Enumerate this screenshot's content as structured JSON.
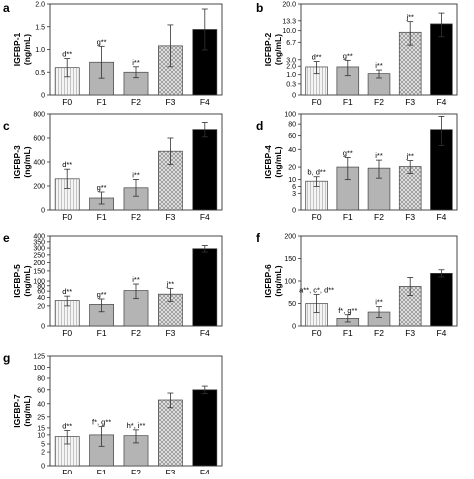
{
  "figure": {
    "bar_colors": {
      "F0": "#f2f2f2",
      "F1": "#b4b4b4",
      "F2": "#b4b4b4",
      "F3": "#d6d6d6",
      "F4": "#000000"
    },
    "bar_patterns": {
      "F0": "vertical-lines",
      "F1": "solid",
      "F2": "solid",
      "F3": "crosshatch",
      "F4": "solid"
    }
  },
  "chart_data": [
    {
      "type": "bar",
      "panel_label": "a",
      "ylabel_line1": "IGFBP-1",
      "ylabel_line2": "(ng/mL)",
      "categories": [
        "F0",
        "F1",
        "F2",
        "F3",
        "F4"
      ],
      "values": [
        0.6,
        0.72,
        0.5,
        1.08,
        1.44
      ],
      "errors": [
        0.2,
        0.35,
        0.12,
        0.46,
        0.45
      ],
      "yticks": [
        "0",
        "0.5",
        "1.0",
        "1.5",
        "2.0"
      ],
      "ylim": [
        0,
        2.0
      ],
      "scale": "linear",
      "annotations": [
        "d**",
        "g**",
        "i**",
        "",
        ""
      ]
    },
    {
      "type": "bar",
      "panel_label": "b",
      "ylabel_line1": "IGFBP-2",
      "ylabel_line2": "(ng/mL)",
      "categories": [
        "F0",
        "F1",
        "F2",
        "F3",
        "F4"
      ],
      "values": [
        1.9,
        1.9,
        1.1,
        9.5,
        12.2
      ],
      "errors": [
        0.8,
        1.0,
        0.4,
        3.5,
        4.0
      ],
      "yticks": [
        "0",
        "0.3",
        "1.0",
        "2.0",
        "3.0",
        "6.7",
        "10.0",
        "13.3",
        "20.0"
      ],
      "ylim": [
        0,
        20
      ],
      "scale": "sqrt",
      "annotations": [
        "d**",
        "g**",
        "i**",
        "j**",
        ""
      ]
    },
    {
      "type": "bar",
      "panel_label": "c",
      "ylabel_line1": "IGFBP-3",
      "ylabel_line2": "(ng/mL)",
      "categories": [
        "F0",
        "F1",
        "F2",
        "F3",
        "F4"
      ],
      "values": [
        260,
        100,
        185,
        490,
        670
      ],
      "errors": [
        80,
        50,
        70,
        110,
        60
      ],
      "yticks": [
        "0",
        "200",
        "400",
        "600",
        "800"
      ],
      "ylim": [
        0,
        800
      ],
      "scale": "linear",
      "annotations": [
        "d**",
        "g**",
        "i**",
        "",
        ""
      ]
    },
    {
      "type": "bar",
      "panel_label": "d",
      "ylabel_line1": "IGFBP-4",
      "ylabel_line2": "(ng/mL)",
      "categories": [
        "F0",
        "F1",
        "F2",
        "F3",
        "F4"
      ],
      "values": [
        9,
        20,
        19,
        20.5,
        70
      ],
      "errors": [
        3,
        10,
        8,
        6,
        25
      ],
      "yticks": [
        "0",
        "3",
        "6",
        "10",
        "20",
        "40",
        "60",
        "80",
        "100"
      ],
      "ylim": [
        0,
        100
      ],
      "scale": "sqrt",
      "annotations": [
        "b, d**",
        "g**",
        "i**",
        "j**",
        ""
      ]
    },
    {
      "type": "bar",
      "panel_label": "e",
      "ylabel_line1": "IGFBP-5",
      "ylabel_line2": "(ng/mL)",
      "categories": [
        "F0",
        "F1",
        "F2",
        "F3",
        "F4"
      ],
      "values": [
        32,
        23,
        62,
        50,
        295
      ],
      "errors": [
        12,
        13,
        25,
        20,
        25
      ],
      "yticks": [
        "0",
        "20",
        "40",
        "60",
        "80",
        "100",
        "150",
        "200",
        "250",
        "300",
        "350",
        "400"
      ],
      "ylim": [
        0,
        400
      ],
      "scale": "sqrt",
      "annotations": [
        "d**",
        "g**",
        "i**",
        "j**",
        ""
      ]
    },
    {
      "type": "bar",
      "panel_label": "f",
      "ylabel_line1": "IGFBP-6",
      "ylabel_line2": "(ng/mL)",
      "categories": [
        "F0",
        "F1",
        "F2",
        "F3",
        "F4"
      ],
      "values": [
        50,
        17,
        31,
        88,
        117
      ],
      "errors": [
        20,
        8,
        12,
        20,
        8
      ],
      "yticks": [
        "0",
        "50",
        "100",
        "150",
        "200"
      ],
      "ylim": [
        0,
        200
      ],
      "scale": "linear",
      "annotations": [
        "a**, c*, d**",
        "f*, g**",
        "i**",
        "",
        ""
      ]
    },
    {
      "type": "bar",
      "panel_label": "g",
      "ylabel_line1": "IGFBP-7",
      "ylabel_line2": "(ng/mL)",
      "categories": [
        "F0",
        "F1",
        "F2",
        "F3",
        "F4"
      ],
      "values": [
        9,
        10,
        9.5,
        45,
        60
      ],
      "errors": [
        4,
        6,
        4,
        10,
        6
      ],
      "yticks": [
        "0",
        "2",
        "5",
        "10",
        "15",
        "25",
        "40",
        "60",
        "80",
        "100",
        "125"
      ],
      "ylim": [
        0,
        125
      ],
      "scale": "sqrt",
      "annotations": [
        "d**",
        "f*, g**",
        "h*, i**",
        "",
        ""
      ]
    }
  ]
}
